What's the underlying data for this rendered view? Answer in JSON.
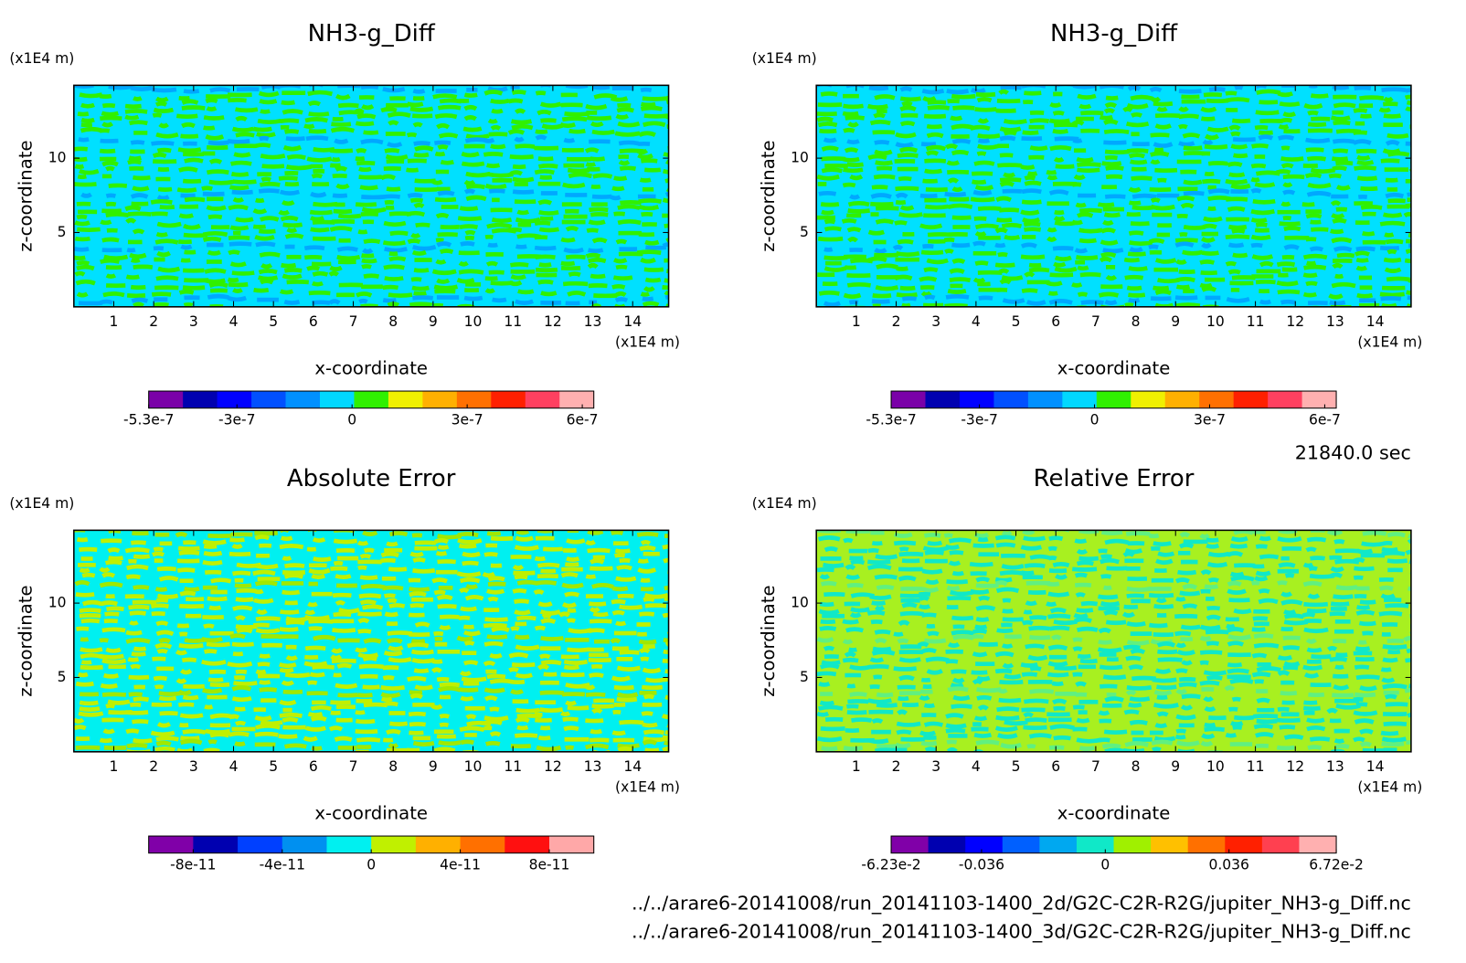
{
  "chart_data": [
    {
      "type": "contour",
      "title": "NH3-g_Diff",
      "xlabel": "x-coordinate",
      "ylabel": "z-coordinate",
      "xunit": "(x1E4 m)",
      "yunit": "(x1E4 m)",
      "xlim": [
        0,
        14.9
      ],
      "ylim": [
        0,
        14.9
      ],
      "xticks": [
        1,
        2,
        3,
        4,
        5,
        6,
        7,
        8,
        9,
        10,
        11,
        12,
        13,
        14
      ],
      "yticks": [
        5,
        10
      ],
      "field_colors": [
        "#00e0ff",
        "#30f000",
        "#00a8ff"
      ],
      "colorbar": {
        "clim": [
          -5.3e-07,
          6.3e-07
        ],
        "colors": [
          "#7a00a8",
          "#0000b0",
          "#0000ff",
          "#0050ff",
          "#0090ff",
          "#00d8ff",
          "#30f000",
          "#f0f000",
          "#ffb000",
          "#ff7000",
          "#ff2000",
          "#ff4060",
          "#ffb0b0"
        ],
        "ticks": [
          -5.3e-07,
          -3e-07,
          0,
          3e-07,
          6e-07
        ]
      }
    },
    {
      "type": "contour",
      "title": "NH3-g_Diff",
      "xlabel": "x-coordinate",
      "ylabel": "z-coordinate",
      "xunit": "(x1E4 m)",
      "yunit": "(x1E4 m)",
      "xlim": [
        0,
        14.9
      ],
      "ylim": [
        0,
        14.9
      ],
      "xticks": [
        1,
        2,
        3,
        4,
        5,
        6,
        7,
        8,
        9,
        10,
        11,
        12,
        13,
        14
      ],
      "yticks": [
        5,
        10
      ],
      "field_colors": [
        "#00e0ff",
        "#30f000",
        "#00a8ff"
      ],
      "colorbar": {
        "clim": [
          -5.3e-07,
          6.3e-07
        ],
        "colors": [
          "#7a00a8",
          "#0000b0",
          "#0000ff",
          "#0050ff",
          "#0090ff",
          "#00d8ff",
          "#30f000",
          "#f0f000",
          "#ffb000",
          "#ff7000",
          "#ff2000",
          "#ff4060",
          "#ffb0b0"
        ],
        "ticks": [
          -5.3e-07,
          -3e-07,
          0,
          3e-07,
          6e-07
        ]
      }
    },
    {
      "type": "contour",
      "title": "Absolute Error",
      "xlabel": "x-coordinate",
      "ylabel": "z-coordinate",
      "xunit": "(x1E4 m)",
      "yunit": "(x1E4 m)",
      "xlim": [
        0,
        14.9
      ],
      "ylim": [
        0,
        14.9
      ],
      "xticks": [
        1,
        2,
        3,
        4,
        5,
        6,
        7,
        8,
        9,
        10,
        11,
        12,
        13,
        14
      ],
      "yticks": [
        5,
        10
      ],
      "field_colors": [
        "#00f0f0",
        "#c0f000",
        "#a0e800"
      ],
      "colorbar": {
        "clim": [
          -1e-10,
          1e-10
        ],
        "colors": [
          "#8000a8",
          "#0000b0",
          "#0040ff",
          "#0090f0",
          "#00f0f0",
          "#c0f000",
          "#ffb000",
          "#ff7000",
          "#ff1010",
          "#ffa8a8"
        ],
        "ticks": [
          -8e-11,
          -4e-11,
          0,
          4e-11,
          8e-11
        ]
      }
    },
    {
      "type": "contour",
      "title": "Relative Error",
      "xlabel": "x-coordinate",
      "ylabel": "z-coordinate",
      "xunit": "(x1E4 m)",
      "yunit": "(x1E4 m)",
      "xlim": [
        0,
        14.9
      ],
      "ylim": [
        0,
        14.9
      ],
      "xticks": [
        1,
        2,
        3,
        4,
        5,
        6,
        7,
        8,
        9,
        10,
        11,
        12,
        13,
        14
      ],
      "yticks": [
        5,
        10
      ],
      "field_colors": [
        "#a8f020",
        "#10e8c8",
        "#60f080"
      ],
      "colorbar": {
        "clim": [
          -0.0623,
          0.0672
        ],
        "colors": [
          "#8000a8",
          "#0000b0",
          "#0000ff",
          "#0060ff",
          "#00a8f0",
          "#10e8c8",
          "#a0f000",
          "#ffc000",
          "#ff7000",
          "#ff2000",
          "#ff4050",
          "#ffb0b0"
        ],
        "ticks": [
          {
            "value": -0.0623,
            "label": "-6.23e-2"
          },
          -0.036,
          0,
          0.036,
          {
            "value": 0.0672,
            "label": "6.72e-2"
          }
        ]
      }
    }
  ],
  "annotations": {
    "time": "21840.0 sec",
    "files": [
      "../../arare6-20141008/run_20141103-1400_2d/G2C-C2R-R2G/jupiter_NH3-g_Diff.nc",
      "../../arare6-20141008/run_20141103-1400_3d/G2C-C2R-R2G/jupiter_NH3-g_Diff.nc"
    ]
  }
}
